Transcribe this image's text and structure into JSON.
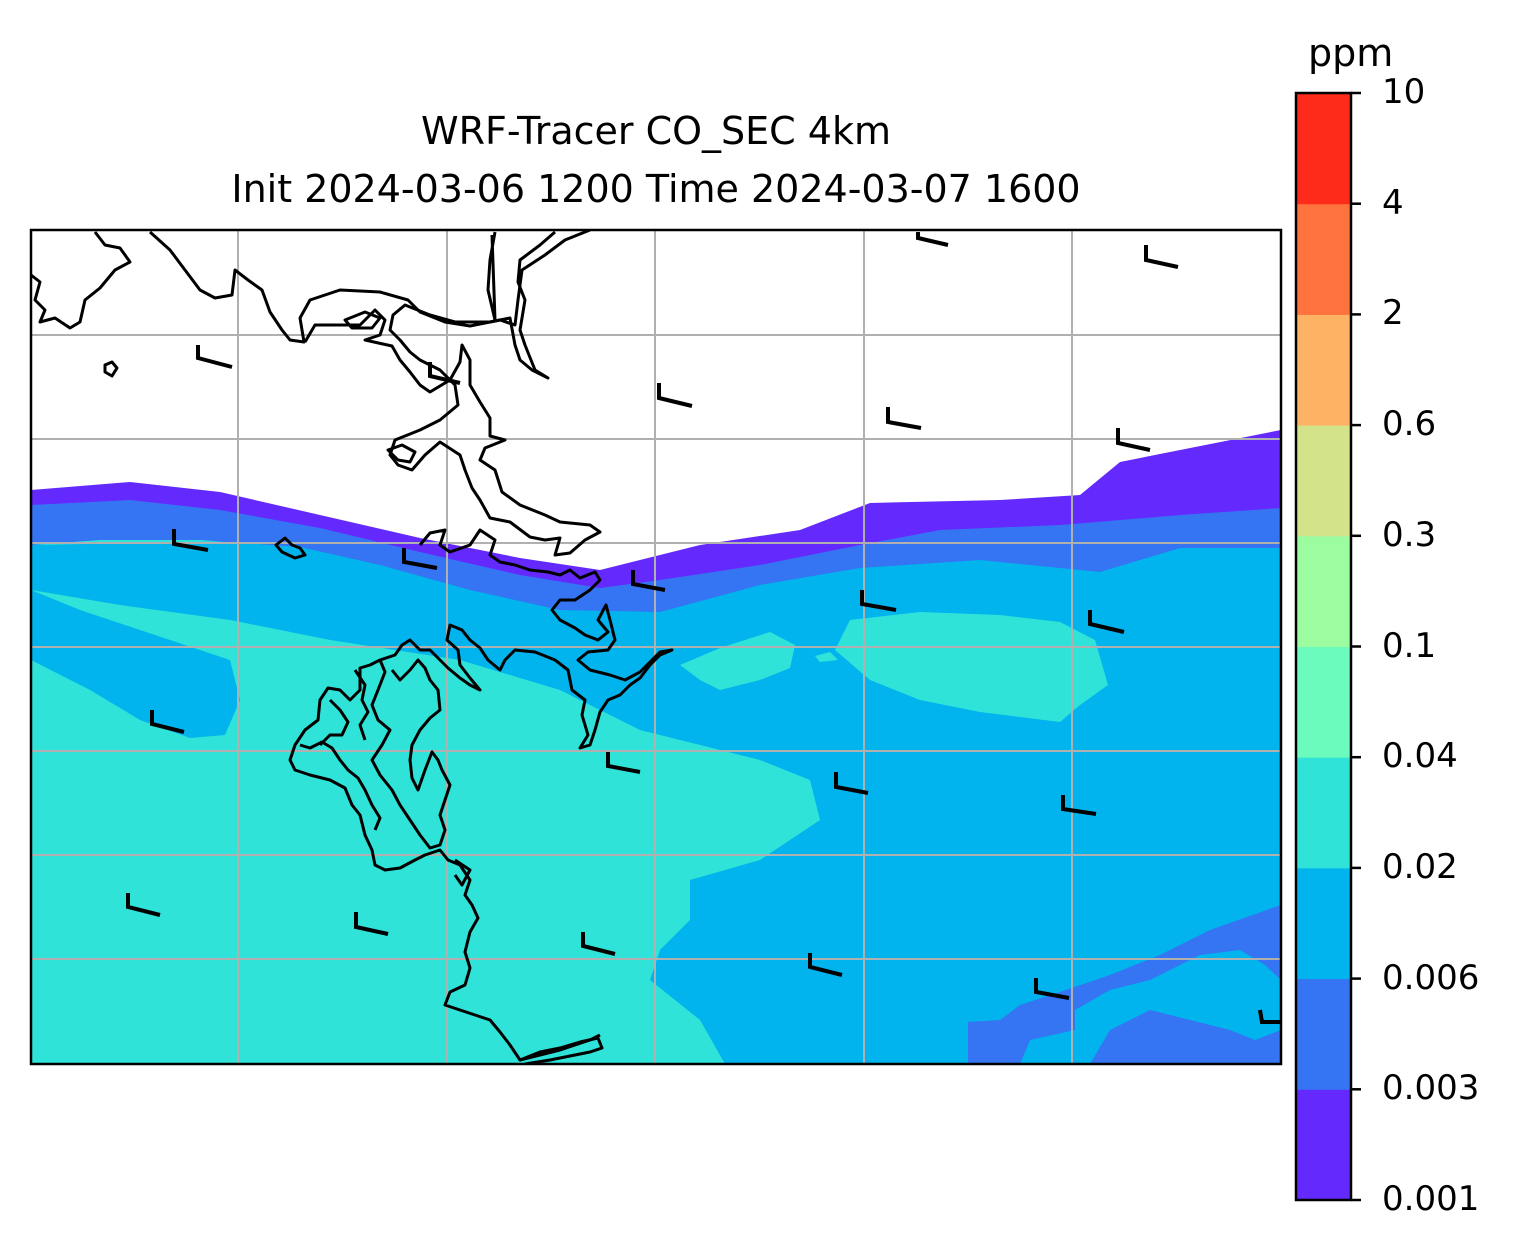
{
  "title": {
    "line1": "WRF-Tracer CO_SEC 4km",
    "line2": "Init 2024-03-06 1200 Time 2024-03-07 1600"
  },
  "colorbar": {
    "unit": "ppm",
    "levels": [
      "0.001",
      "0.003",
      "0.006",
      "0.02",
      "0.04",
      "0.1",
      "0.3",
      "0.6",
      "2",
      "4",
      "10"
    ],
    "colors": [
      "#6429fc",
      "#3574f3",
      "#01b4ed",
      "#30e3d9",
      "#6bfcbd",
      "#9bfca0",
      "#d2e38a",
      "#feb263",
      "#fe723d",
      "#fe2a1a"
    ]
  },
  "map": {
    "fill_levels_shown": [
      "0.001",
      "0.003",
      "0.006",
      "0.02"
    ],
    "coastline_color": "#000000",
    "gridline_color": "#b0b0b0",
    "wind_barbs": "present"
  }
}
